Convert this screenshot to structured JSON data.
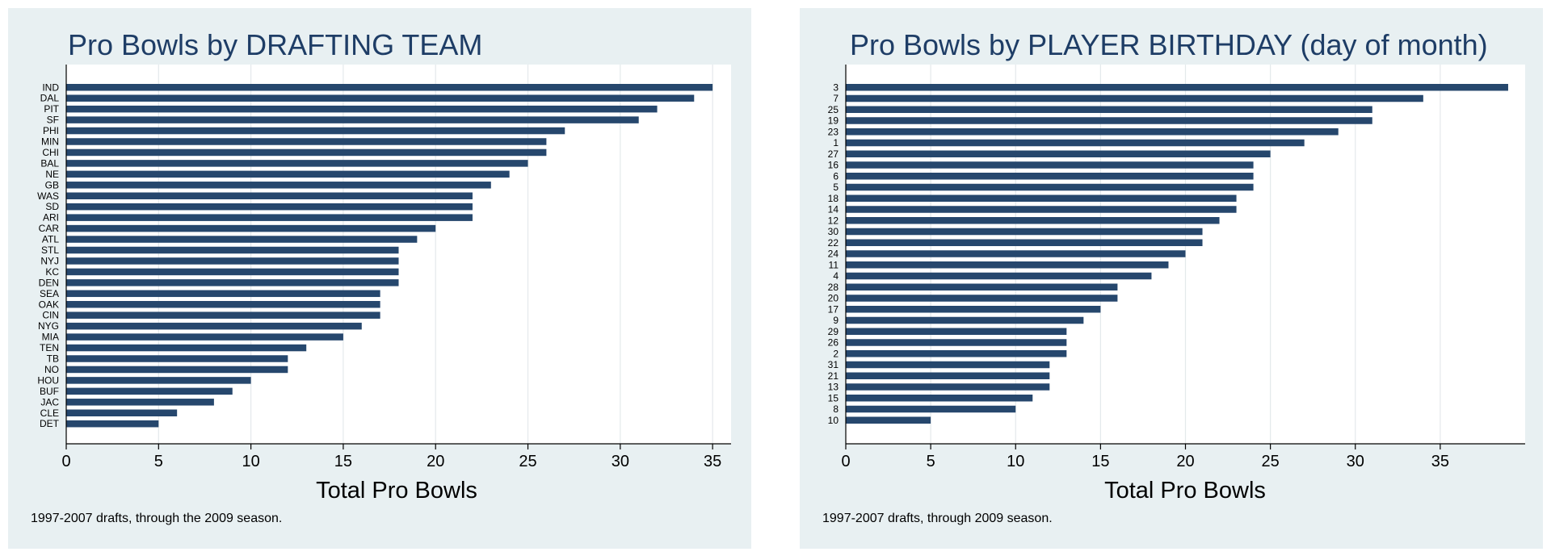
{
  "chart_data": [
    {
      "type": "bar",
      "orientation": "horizontal",
      "title": "Pro Bowls by DRAFTING TEAM",
      "xlabel": "Total Pro Bowls",
      "ylabel": "",
      "note": "1997-2007 drafts, through the 2009 season.",
      "xlim": [
        0,
        36
      ],
      "xticks": [
        "0",
        "5",
        "10",
        "15",
        "20",
        "25",
        "30",
        "35"
      ],
      "grid": true,
      "categories": [
        "IND",
        "DAL",
        "PIT",
        "SF",
        "PHI",
        "MIN",
        "CHI",
        "BAL",
        "NE",
        "GB",
        "WAS",
        "SD",
        "ARI",
        "CAR",
        "ATL",
        "STL",
        "NYJ",
        "KC",
        "DEN",
        "SEA",
        "OAK",
        "CIN",
        "NYG",
        "MIA",
        "TEN",
        "TB",
        "NO",
        "HOU",
        "BUF",
        "JAC",
        "CLE",
        "DET"
      ],
      "values": [
        35,
        34,
        32,
        31,
        27,
        26,
        26,
        25,
        24,
        23,
        22,
        22,
        22,
        20,
        19,
        18,
        18,
        18,
        18,
        17,
        17,
        17,
        16,
        15,
        13,
        12,
        12,
        10,
        9,
        8,
        6,
        5
      ]
    },
    {
      "type": "bar",
      "orientation": "horizontal",
      "title": "Pro Bowls by PLAYER BIRTHDAY (day of month)",
      "xlabel": "Total Pro Bowls",
      "ylabel": "",
      "note": "1997-2007 drafts, through 2009 season.",
      "xlim": [
        0,
        40
      ],
      "xticks": [
        "0",
        "5",
        "10",
        "15",
        "20",
        "25",
        "30",
        "35"
      ],
      "grid": true,
      "categories": [
        "3",
        "7",
        "25",
        "19",
        "23",
        "1",
        "27",
        "16",
        "6",
        "5",
        "18",
        "14",
        "12",
        "30",
        "22",
        "24",
        "11",
        "4",
        "28",
        "20",
        "17",
        "9",
        "29",
        "26",
        "2",
        "31",
        "21",
        "13",
        "15",
        "8",
        "10"
      ],
      "values": [
        39,
        34,
        31,
        31,
        29,
        27,
        25,
        24,
        24,
        24,
        23,
        23,
        22,
        21,
        21,
        20,
        19,
        18,
        16,
        16,
        15,
        14,
        13,
        13,
        13,
        12,
        12,
        12,
        11,
        10,
        5
      ]
    }
  ],
  "colors": {
    "panel_bg": "#e8f0f2",
    "plot_bg": "#ffffff",
    "bar": "#26476d",
    "title": "#1e3d66",
    "grid": "#e4e9eb",
    "axis": "#000000"
  }
}
